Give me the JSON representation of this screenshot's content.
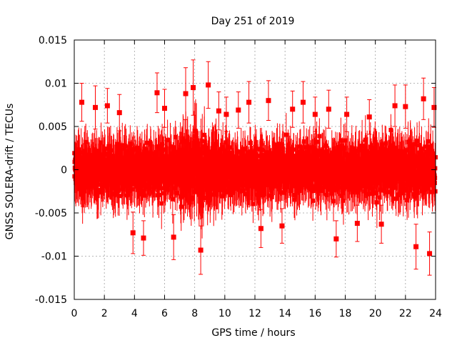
{
  "chart_data": {
    "type": "scatter",
    "title": "Day 251 of 2019",
    "xlabel": "GPS time / hours",
    "ylabel": "GNSS SOLERA-drift / TECUs",
    "xlim": [
      0,
      24
    ],
    "ylim": [
      -0.015,
      0.015
    ],
    "x_ticks": [
      0,
      2,
      4,
      6,
      8,
      10,
      12,
      14,
      16,
      18,
      20,
      22,
      24
    ],
    "x_tick_labels": [
      "0",
      "2",
      "4",
      "6",
      "8",
      "10",
      "12",
      "14",
      "16",
      "18",
      "20",
      "22",
      "24"
    ],
    "y_ticks": [
      -0.015,
      -0.01,
      -0.005,
      0,
      0.005,
      0.01,
      0.015
    ],
    "y_tick_labels": [
      "-0.015",
      "-0.01",
      "-0.005",
      "0",
      "0.005",
      "0.01",
      "0.015"
    ],
    "grid": true,
    "marker_color": "#ff0000",
    "errorbar_color": "#ff0000",
    "series": [
      {
        "name": "SOLERA drift",
        "x": [
          0.5,
          1.4,
          2.2,
          3.0,
          3.9,
          4.6,
          5.5,
          6.0,
          6.6,
          7.4,
          7.9,
          8.4,
          8.9,
          9.6,
          10.1,
          10.9,
          11.6,
          12.4,
          12.9,
          13.8,
          14.5,
          15.2,
          16.0,
          16.9,
          17.4,
          18.1,
          18.8,
          19.6,
          20.4,
          21.3,
          22.0,
          22.7,
          23.2,
          23.6,
          23.9
        ],
        "y": [
          0.0078,
          0.0072,
          0.0074,
          0.0066,
          -0.0073,
          -0.0079,
          0.0089,
          0.0071,
          -0.0078,
          0.0088,
          0.0095,
          -0.0093,
          0.0098,
          0.0068,
          0.0064,
          0.0069,
          0.0078,
          -0.0068,
          0.008,
          -0.0065,
          0.007,
          0.0078,
          0.0064,
          0.007,
          -0.008,
          0.0064,
          -0.0062,
          0.0061,
          -0.0063,
          0.0074,
          0.0073,
          -0.0089,
          0.0082,
          -0.0097,
          0.0072
        ],
        "yerr": [
          0.0022,
          0.0025,
          0.002,
          0.0021,
          0.0024,
          0.002,
          0.0023,
          0.0022,
          0.0026,
          0.003,
          0.0032,
          0.0028,
          0.0027,
          0.0022,
          0.002,
          0.0021,
          0.0024,
          0.0022,
          0.0023,
          0.002,
          0.0021,
          0.0024,
          0.002,
          0.0022,
          0.0021,
          0.002,
          0.0021,
          0.002,
          0.0022,
          0.0024,
          0.0025,
          0.0026,
          0.0024,
          0.0025,
          0.0023
        ]
      }
    ]
  }
}
